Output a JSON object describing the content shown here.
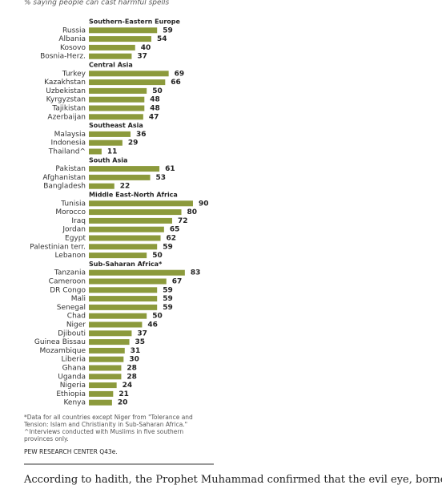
{
  "chart_data": {
    "type": "bar",
    "subtitle": "% saying people can cast harmful spells",
    "color": "#8c9a3c",
    "groups": [
      {
        "name": "Southern-Eastern  Europe",
        "categories": [
          "Russia",
          "Albania",
          "Kosovo",
          "Bosnia-Herz."
        ],
        "values": [
          59,
          54,
          40,
          37
        ]
      },
      {
        "name": "Central Asia",
        "categories": [
          "Turkey",
          "Kazakhstan",
          "Uzbekistan",
          "Kyrgyzstan",
          "Tajikistan",
          "Azerbaijan"
        ],
        "values": [
          69,
          66,
          50,
          48,
          48,
          47
        ]
      },
      {
        "name": "Southeast Asia",
        "categories": [
          "Malaysia",
          "Indonesia",
          "Thailand^"
        ],
        "values": [
          36,
          29,
          11
        ]
      },
      {
        "name": "South Asia",
        "categories": [
          "Pakistan",
          "Afghanistan",
          "Bangladesh"
        ],
        "values": [
          61,
          53,
          22
        ]
      },
      {
        "name": "Middle East-North Africa",
        "categories": [
          "Tunisia",
          "Morocco",
          "Iraq",
          "Jordan",
          "Egypt",
          "Palestinian terr.",
          "Lebanon"
        ],
        "values": [
          90,
          80,
          72,
          65,
          62,
          59,
          50
        ]
      },
      {
        "name": "Sub-Saharan Africa*",
        "categories": [
          "Tanzania",
          "Cameroon",
          "DR Congo",
          "Mali",
          "Senegal",
          "Chad",
          "Niger",
          "Djibouti",
          "Guinea Bissau",
          "Mozambique",
          "Liberia",
          "Ghana",
          "Uganda",
          "Nigeria",
          "Ethiopia",
          "Kenya"
        ],
        "values": [
          83,
          67,
          59,
          59,
          59,
          50,
          46,
          37,
          35,
          31,
          30,
          28,
          28,
          24,
          21,
          20
        ]
      }
    ],
    "notes": [
      "*Data for all countries except Niger from \"Tolerance and Tension: Islam and Christianity in Sub-Saharan Africa.\"",
      "^Interviews conducted with Muslims in five southern provinces only."
    ],
    "source": "PEW RESEARCH CENTER Q43e."
  },
  "body_text": "According to hadith, the Prophet Muhammad confirmed that the evil eye, borne by"
}
